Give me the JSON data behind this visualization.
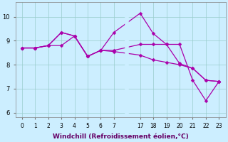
{
  "bg_color": "#cceeff",
  "line_color": "#aa00aa",
  "marker": "D",
  "markersize": 2.5,
  "linewidth": 0.9,
  "ylim": [
    5.8,
    10.6
  ],
  "yticks": [
    6,
    7,
    8,
    9,
    10
  ],
  "ylabel_fontsize": 6,
  "xlabel": "Windchill (Refroidissement éolien,°C)",
  "xlabel_fontsize": 6.5,
  "xtick_vals": [
    0,
    1,
    2,
    3,
    4,
    5,
    6,
    7,
    17,
    18,
    19,
    20,
    21,
    22,
    23
  ],
  "xtick_mapped": [
    0,
    1,
    2,
    3,
    4,
    5,
    6,
    7,
    9,
    10,
    11,
    12,
    13,
    14,
    15
  ],
  "xtick_labels": [
    "0",
    "1",
    "2",
    "3",
    "4",
    "5",
    "6",
    "7",
    "17",
    "18",
    "19",
    "20",
    "21",
    "22",
    "23"
  ],
  "line1_xraw": [
    0,
    1,
    2,
    3,
    4,
    5,
    6,
    7,
    17,
    18,
    19,
    20,
    21,
    22,
    23
  ],
  "line1_y": [
    8.7,
    8.7,
    8.8,
    9.35,
    9.2,
    8.35,
    8.6,
    9.35,
    10.15,
    9.3,
    8.85,
    8.05,
    7.85,
    7.35,
    7.3
  ],
  "line2_xraw": [
    0,
    1,
    2,
    3,
    4,
    5,
    6,
    7,
    17,
    18,
    19,
    20,
    21,
    22,
    23
  ],
  "line2_y": [
    8.7,
    8.7,
    8.8,
    9.35,
    9.2,
    8.35,
    8.6,
    8.6,
    8.85,
    8.85,
    8.85,
    8.85,
    7.35,
    6.5,
    7.3
  ],
  "line3_xraw": [
    0,
    1,
    2,
    3,
    4,
    5,
    6,
    7,
    17,
    18,
    19,
    20,
    21,
    22,
    23
  ],
  "line3_y": [
    8.7,
    8.7,
    8.8,
    8.8,
    9.2,
    8.35,
    8.6,
    8.55,
    8.4,
    8.2,
    8.1,
    8.0,
    7.85,
    7.35,
    7.3
  ]
}
